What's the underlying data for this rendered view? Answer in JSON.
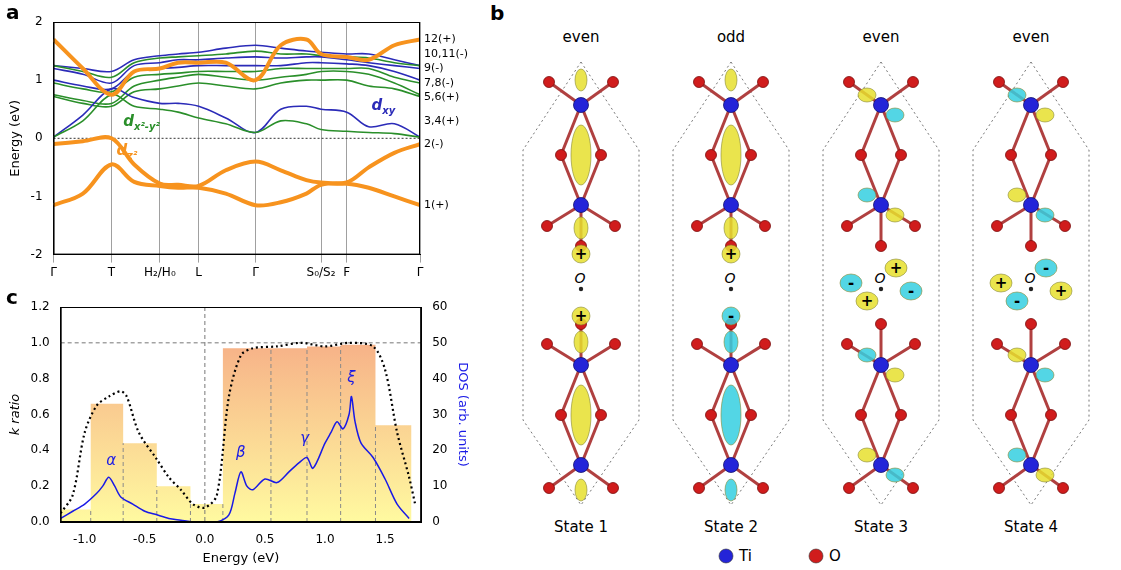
{
  "chart_data": [
    {
      "panel_label": "a",
      "type": "line",
      "y_label": "Energy (eV)",
      "x": [
        0,
        0.08,
        0.158,
        0.22,
        0.29,
        0.34,
        0.396,
        0.47,
        0.551,
        0.62,
        0.69,
        0.73,
        0.8,
        0.86,
        0.93,
        1.0
      ],
      "xlim": [
        0,
        1
      ],
      "xticks": [
        {
          "value": 0,
          "label": "Γ"
        },
        {
          "value": 0.158,
          "label": "T"
        },
        {
          "value": 0.29,
          "label": "H₂/H₀"
        },
        {
          "value": 0.396,
          "label": "L"
        },
        {
          "value": 0.551,
          "label": "Γ"
        },
        {
          "value": 0.73,
          "label": "S₀/S₂"
        },
        {
          "value": 0.8,
          "label": "F"
        },
        {
          "value": 1,
          "label": "Γ"
        }
      ],
      "ylim": [
        -2,
        2
      ],
      "yticks": [
        -2,
        -1,
        0,
        1,
        2
      ],
      "grid": true,
      "hlines": [
        0
      ],
      "series": [
        {
          "color": "#f7931e",
          "line_style": "thick",
          "values": [
            -1.15,
            -0.95,
            -0.45,
            -0.75,
            -0.82,
            -0.85,
            -0.85,
            -0.95,
            -1.15,
            -1.1,
            -0.95,
            -0.8,
            -0.78,
            -0.85,
            -1.0,
            -1.15
          ]
        },
        {
          "color": "#f7931e",
          "line_style": "thick",
          "values": [
            -0.1,
            -0.05,
            0.0,
            -0.45,
            -0.78,
            -0.8,
            -0.82,
            -0.55,
            -0.4,
            -0.55,
            -0.72,
            -0.76,
            -0.76,
            -0.5,
            -0.25,
            -0.1
          ]
        },
        {
          "color": "#2a8f2a",
          "line_style": "solid",
          "values": [
            0.02,
            0.3,
            0.75,
            0.55,
            0.5,
            0.45,
            0.35,
            0.25,
            0.1,
            0.3,
            0.25,
            0.15,
            0.12,
            0.1,
            0.08,
            0.02
          ]
        },
        {
          "color": "#2b2bb8",
          "line_style": "solid",
          "values": [
            0.02,
            0.4,
            0.85,
            0.7,
            0.6,
            0.6,
            0.55,
            0.35,
            0.1,
            0.5,
            0.55,
            0.5,
            0.45,
            0.2,
            0.25,
            0.02
          ]
        },
        {
          "color": "#2a8f2a",
          "line_style": "solid",
          "values": [
            0.72,
            0.6,
            0.55,
            0.8,
            0.85,
            0.9,
            0.95,
            0.9,
            0.85,
            0.95,
            1.0,
            1.0,
            1.0,
            0.9,
            0.85,
            0.72
          ]
        },
        {
          "color": "#2a8f2a",
          "line_style": "solid",
          "values": [
            0.75,
            0.65,
            0.6,
            0.9,
            1.0,
            1.05,
            1.1,
            1.05,
            1.0,
            1.05,
            1.1,
            1.15,
            1.15,
            1.1,
            0.95,
            0.75
          ]
        },
        {
          "color": "#2a8f2a",
          "line_style": "solid",
          "values": [
            0.95,
            0.85,
            0.8,
            1.05,
            1.1,
            1.12,
            1.15,
            1.15,
            1.15,
            1.2,
            1.2,
            1.2,
            1.2,
            1.2,
            1.05,
            0.95
          ]
        },
        {
          "color": "#2b2bb8",
          "line_style": "solid",
          "values": [
            1.0,
            0.9,
            0.85,
            1.15,
            1.2,
            1.22,
            1.25,
            1.25,
            1.25,
            1.25,
            1.3,
            1.3,
            1.28,
            1.25,
            1.15,
            1.0
          ]
        },
        {
          "color": "#2b2bb8",
          "line_style": "solid",
          "values": [
            1.2,
            1.1,
            0.95,
            1.25,
            1.3,
            1.35,
            1.35,
            1.38,
            1.4,
            1.38,
            1.4,
            1.4,
            1.35,
            1.3,
            1.25,
            1.2
          ]
        },
        {
          "color": "#2a8f2a",
          "line_style": "solid",
          "values": [
            1.25,
            1.15,
            1.05,
            1.3,
            1.38,
            1.4,
            1.42,
            1.45,
            1.5,
            1.45,
            1.45,
            1.42,
            1.4,
            1.38,
            1.3,
            1.25
          ]
        },
        {
          "color": "#2b2bb8",
          "line_style": "solid",
          "values": [
            1.25,
            1.2,
            1.15,
            1.35,
            1.42,
            1.45,
            1.48,
            1.55,
            1.6,
            1.55,
            1.5,
            1.48,
            1.45,
            1.45,
            1.35,
            1.25
          ]
        },
        {
          "color": "#f7931e",
          "line_style": "thick",
          "values": [
            1.7,
            1.2,
            0.75,
            1.15,
            1.2,
            1.3,
            1.3,
            1.3,
            1.0,
            1.6,
            1.7,
            1.45,
            1.4,
            1.35,
            1.6,
            1.7
          ]
        }
      ],
      "band_labels": [
        {
          "text": "12(+)",
          "y": 1.7
        },
        {
          "text": "10,11(-)",
          "y": 1.45
        },
        {
          "text": "9(-)",
          "y": 1.2
        },
        {
          "text": "7,8(-)",
          "y": 0.95
        },
        {
          "text": "5,6(+)",
          "y": 0.7
        },
        {
          "text": "3,4(+)",
          "y": 0.3
        },
        {
          "text": "2(-)",
          "y": -0.1
        },
        {
          "text": "1(+)",
          "y": -1.15
        }
      ],
      "annotations": [
        {
          "text": "dz²",
          "x": 0.2,
          "y": -0.28,
          "color": "#f7931e"
        },
        {
          "text": "dx²-y²",
          "x": 0.24,
          "y": 0.22,
          "color": "#2a8f2a"
        },
        {
          "text": "dxy",
          "x": 0.9,
          "y": 0.48,
          "color": "#2b2bb8"
        }
      ]
    },
    {
      "panel_label": "c",
      "type": "histogram",
      "x_label": "Energy (eV)",
      "y_label": "k ratio",
      "y2_label": "DOS (arb. units)",
      "bins": [
        -1.2,
        -0.95,
        -0.68,
        -0.4,
        -0.12,
        0.15,
        0.55,
        0.85,
        1.13,
        1.42,
        1.72
      ],
      "counts": [
        0.07,
        0.66,
        0.44,
        0.2,
        0.1,
        0.97,
        0.97,
        0.98,
        0.99,
        0.54
      ],
      "color": "#f5a383",
      "xlim": [
        -1.2,
        1.8
      ],
      "xticks": [
        {
          "value": -1,
          "label": "-1.0"
        },
        {
          "value": -0.5,
          "label": "-0.5"
        },
        {
          "value": 0,
          "label": "0.0"
        },
        {
          "value": 0.5,
          "label": "0.5"
        },
        {
          "value": 1,
          "label": "1.0"
        },
        {
          "value": 1.5,
          "label": "1.5"
        }
      ],
      "ylim": [
        0,
        1.2
      ],
      "yticks": [
        {
          "value": 0,
          "label": "0.0"
        },
        {
          "value": 0.2,
          "label": "0.2"
        },
        {
          "value": 0.4,
          "label": "0.4"
        },
        {
          "value": 0.6,
          "label": "0.6"
        },
        {
          "value": 0.8,
          "label": "0.8"
        },
        {
          "value": 1,
          "label": "1.0"
        },
        {
          "value": 1.2,
          "label": "1.2"
        }
      ],
      "y2lim": [
        0,
        60
      ],
      "y2ticks": [
        0,
        10,
        20,
        30,
        40,
        50,
        60
      ],
      "hlines": [
        1.0
      ],
      "vlines": [
        0
      ],
      "series": [
        {
          "type": "line",
          "color": "#000000",
          "line_style": "dotted",
          "x": [
            -1.2,
            -1.1,
            -1.0,
            -0.9,
            -0.8,
            -0.7,
            -0.65,
            -0.55,
            -0.4,
            -0.3,
            -0.2,
            -0.1,
            0,
            0.1,
            0.2,
            0.3,
            0.4,
            0.6,
            0.8,
            1.0,
            1.2,
            1.4,
            1.5,
            1.6,
            1.7,
            1.75
          ],
          "values": [
            0.05,
            0.15,
            0.5,
            0.65,
            0.7,
            0.73,
            0.7,
            0.5,
            0.35,
            0.25,
            0.18,
            0.1,
            0.08,
            0.15,
            0.7,
            0.93,
            0.97,
            0.98,
            1.0,
            0.98,
            1.0,
            0.98,
            0.85,
            0.5,
            0.25,
            0.1
          ]
        },
        {
          "type": "line",
          "color": "#1a1ae6",
          "line_style": "solid",
          "axis": "y2",
          "x": [
            -1.2,
            -1.1,
            -1.0,
            -0.9,
            -0.85,
            -0.8,
            -0.75,
            -0.7,
            -0.6,
            -0.5,
            -0.4,
            -0.3,
            -0.2,
            -0.1,
            0,
            0.1,
            0.2,
            0.25,
            0.3,
            0.35,
            0.4,
            0.5,
            0.6,
            0.7,
            0.8,
            0.85,
            0.9,
            1.0,
            1.05,
            1.1,
            1.15,
            1.2,
            1.22,
            1.25,
            1.3,
            1.4,
            1.5,
            1.6,
            1.7
          ],
          "values": [
            1,
            3,
            5,
            8,
            10,
            12.5,
            10,
            7,
            5,
            3,
            2,
            1,
            0.5,
            0,
            0,
            0,
            2,
            8,
            14,
            10,
            9,
            12,
            11,
            14,
            17,
            18,
            15,
            22,
            25,
            28,
            26,
            30,
            35,
            28,
            22,
            18,
            12,
            5,
            1
          ]
        }
      ],
      "annotations": [
        {
          "text": "α",
          "x": -0.78,
          "y": 15,
          "axis": "y2",
          "color": "#1a1ae6"
        },
        {
          "text": "β",
          "x": 0.3,
          "y": 17,
          "axis": "y2",
          "color": "#1a1ae6"
        },
        {
          "text": "γ",
          "x": 0.83,
          "y": 21,
          "axis": "y2",
          "color": "#1a1ae6"
        },
        {
          "text": "ξ",
          "x": 1.22,
          "y": 38,
          "axis": "y2",
          "color": "#1a1ae6"
        }
      ]
    }
  ],
  "diagram_b": {
    "panel_label": "b",
    "center_label": "O",
    "states": [
      {
        "parity": "even",
        "label": "State 1",
        "signs": [
          "+",
          "+"
        ]
      },
      {
        "parity": "odd",
        "label": "State 2",
        "signs": [
          "+",
          "-"
        ]
      },
      {
        "parity": "even",
        "label": "State 3",
        "signs": [
          "-",
          "+",
          "+",
          "-"
        ]
      },
      {
        "parity": "even",
        "label": "State 4",
        "signs": [
          "+",
          "-",
          "-",
          "+"
        ]
      }
    ],
    "legend": [
      {
        "label": "Ti",
        "color": "#2424d8"
      },
      {
        "label": "O",
        "color": "#d01c1c"
      }
    ]
  }
}
